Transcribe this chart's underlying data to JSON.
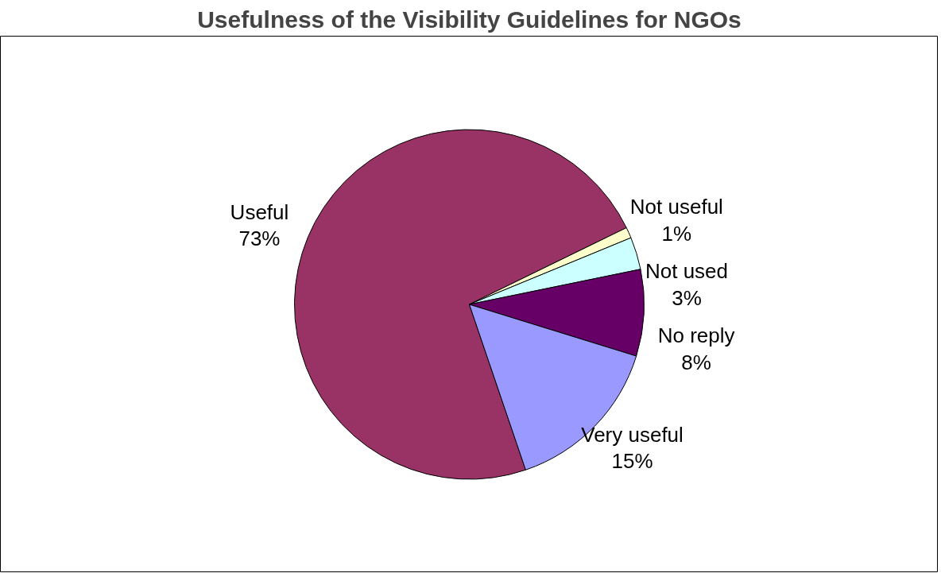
{
  "chart_data": {
    "type": "pie",
    "title": "Usefulness of the Visibility Guidelines for NGOs",
    "categories": [
      "Useful",
      "Not useful",
      "Not used",
      "No reply",
      "Very useful"
    ],
    "values": [
      73,
      1,
      3,
      8,
      15
    ],
    "value_labels": [
      "73%",
      "1%",
      "3%",
      "8%",
      "15%"
    ],
    "colors": [
      "#993366",
      "#ffffcc",
      "#ccffff",
      "#660066",
      "#9999ff"
    ]
  }
}
